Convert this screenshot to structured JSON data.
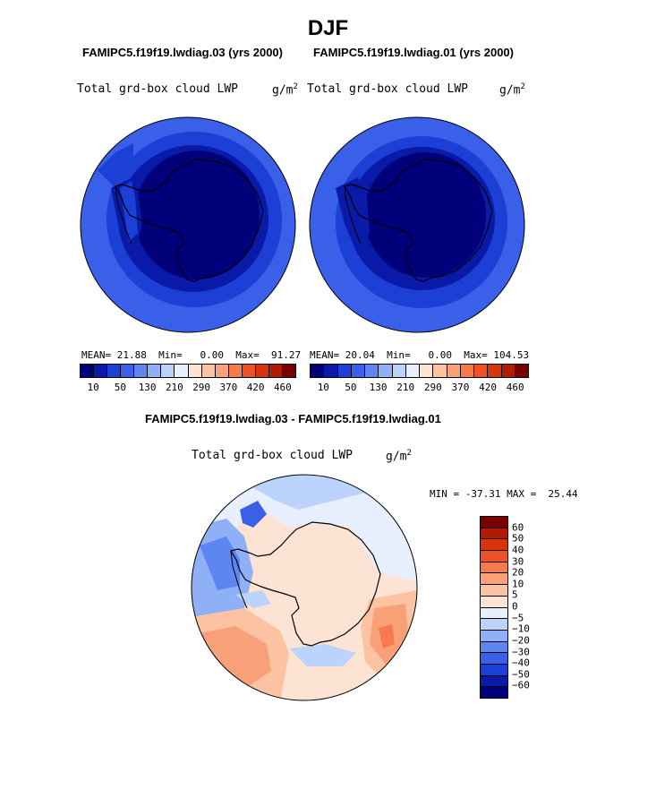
{
  "season": "DJF",
  "panels": [
    {
      "run_title": "FAMIPC5.f19f19.lwdiag.03 (yrs 2000)",
      "variable": "Total grd-box cloud LWP",
      "unit_base": "g/m",
      "unit_exp": "2",
      "mean_label": "MEAN=",
      "mean_value": "21.88",
      "min_label": "Min=",
      "min_value": "0.00",
      "max_label": "Max=",
      "max_value": "91.27"
    },
    {
      "run_title": "FAMIPC5.f19f19.lwdiag.01 (yrs 2000)",
      "variable": "Total grd-box cloud LWP",
      "unit_base": "g/m",
      "unit_exp": "2",
      "mean_label": "MEAN=",
      "mean_value": "20.04",
      "min_label": "Min=",
      "min_value": "0.00",
      "max_label": "Max=",
      "max_value": "104.53"
    }
  ],
  "abs_colorbar": {
    "colors": [
      "#00007a",
      "#0a1aa8",
      "#1c3fd6",
      "#3a60ea",
      "#5e86f2",
      "#8fb0f7",
      "#bcd3fb",
      "#e8f0ff",
      "#fde3d3",
      "#fbc3a2",
      "#f8a077",
      "#f57a4d",
      "#ee5126",
      "#d7330c",
      "#b31a04",
      "#7a0000"
    ],
    "tick_labels": [
      "10",
      "50",
      "130",
      "210",
      "290",
      "370",
      "420",
      "460"
    ]
  },
  "diff": {
    "title": "FAMIPC5.f19f19.lwdiag.03 - FAMIPC5.f19f19.lwdiag.01",
    "variable": "Total grd-box cloud LWP",
    "unit_base": "g/m",
    "unit_exp": "2",
    "min_label": "MIN =",
    "min_value": "-37.31",
    "max_label": "MAX =",
    "max_value": "25.44",
    "colorbar": {
      "colors_bottom_to_top": [
        "#00007a",
        "#0a1aa8",
        "#1c3fd6",
        "#3a60ea",
        "#5e86f2",
        "#8fb0f7",
        "#bcd3fb",
        "#e8f0ff",
        "#fde3d3",
        "#fbc3a2",
        "#f8a077",
        "#f57a4d",
        "#ee5126",
        "#d7330c",
        "#b31a04",
        "#7a0000"
      ],
      "tick_labels_bottom_to_top": [
        "−60",
        "−50",
        "−40",
        "−30",
        "−20",
        "−10",
        "−5",
        "0",
        "5",
        "10",
        "20",
        "30",
        "40",
        "50",
        "60"
      ]
    }
  },
  "map_colors": {
    "deep": "#00007a",
    "dark": "#0a1aa8",
    "mid": "#1c3fd6",
    "light": "#3a60ea",
    "lighter": "#5e86f2",
    "pale_blue": "#bcd3fb",
    "near_zero": "#e8f0ff",
    "pale_red": "#fde3d3",
    "light_red": "#fbc3a2",
    "red": "#f8a077",
    "strong_red": "#f57a4d"
  }
}
